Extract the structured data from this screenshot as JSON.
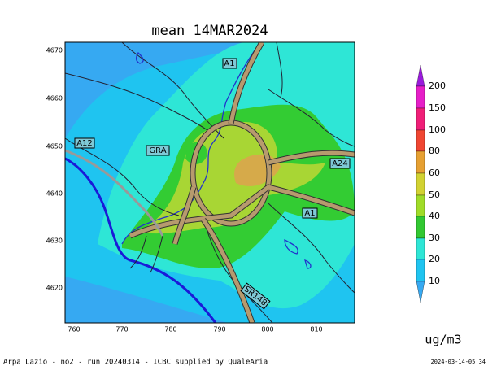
{
  "title": "mean 14MAR2024",
  "map": {
    "x_ticks": [
      760,
      770,
      780,
      790,
      800,
      810
    ],
    "y_ticks": [
      4670,
      4660,
      4650,
      4640,
      4630,
      4620
    ],
    "road_labels": [
      "A1",
      "A12",
      "GRA",
      "A24",
      "A1",
      "SR148"
    ]
  },
  "colorbar": {
    "labels": [
      200,
      150,
      100,
      80,
      60,
      50,
      40,
      30,
      20,
      10
    ],
    "unit": "ug/m3"
  },
  "footer": {
    "left": "Arpa Lazio - no2 - run 20240314 - ICBC supplied by QualeAria",
    "right": "2024-03-14-05:34"
  }
}
